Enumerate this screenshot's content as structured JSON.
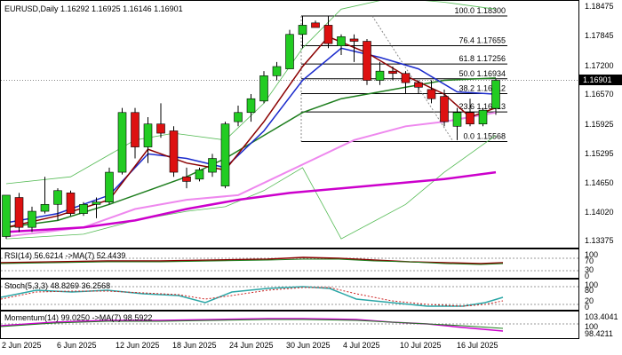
{
  "chart": {
    "symbol_line": "EURUSD,Daily  1.16292 1.16925 1.16146 1.16901",
    "current_price": "1.16901"
  },
  "price_axis": [
    "1.18475",
    "1.17845",
    "1.17200",
    "1.16570",
    "1.15925",
    "1.15295",
    "1.14650",
    "1.14020",
    "1.13375"
  ],
  "fib_levels": [
    {
      "label": "100.0 1.18300"
    },
    {
      "label": "76.4 1.17655"
    },
    {
      "label": "61.8 1.17256"
    },
    {
      "label": "50.0 1.16934"
    },
    {
      "label": "38.2 1.16612"
    },
    {
      "label": "23.6 1.16213"
    },
    {
      "label": "0.0 1.15568"
    }
  ],
  "rsi": {
    "label": "RSI(14) 56.6214  ->MA(7) 52.4439",
    "ticks": [
      "100",
      "70",
      "30",
      "0"
    ]
  },
  "stoch": {
    "label": "Stoch(5,3,3) 48.8269 36.2568",
    "ticks": [
      "100",
      "80",
      "20",
      "0"
    ]
  },
  "momentum": {
    "label": "Momentum(14) 99.0250  ->MA(7) 98.5922",
    "ticks": [
      "103.4041",
      "100",
      "98.4211"
    ]
  },
  "dates": [
    "2 Jun 2025",
    "6 Jun 2025",
    "12 Jun 2025",
    "18 Jun 2025",
    "24 Jun 2025",
    "30 Jun 2025",
    "4 Jul 2025",
    "10 Jul 2025",
    "16 Jul 2025"
  ],
  "colors": {
    "bull": "#22cc22",
    "bear": "#dd1111",
    "ma_blue": "#1a2acc",
    "ma_dark": "#8b0000",
    "ma_green": "#1e7e1e",
    "ma_pink": "#ee88ee",
    "ma_magenta": "#cc00cc",
    "band": "#55bb55"
  },
  "chart_data": {
    "type": "candlestick",
    "candles": [
      {
        "o": 1.135,
        "h": 1.144,
        "l": 1.1345,
        "c": 1.144
      },
      {
        "o": 1.1435,
        "h": 1.1445,
        "l": 1.136,
        "c": 1.137
      },
      {
        "o": 1.137,
        "h": 1.1415,
        "l": 1.136,
        "c": 1.1405
      },
      {
        "o": 1.1405,
        "h": 1.148,
        "l": 1.14,
        "c": 1.142
      },
      {
        "o": 1.142,
        "h": 1.1455,
        "l": 1.1385,
        "c": 1.145
      },
      {
        "o": 1.1445,
        "h": 1.145,
        "l": 1.1395,
        "c": 1.14
      },
      {
        "o": 1.14,
        "h": 1.1425,
        "l": 1.1395,
        "c": 1.142
      },
      {
        "o": 1.142,
        "h": 1.1435,
        "l": 1.139,
        "c": 1.1425
      },
      {
        "o": 1.1425,
        "h": 1.15,
        "l": 1.142,
        "c": 1.149
      },
      {
        "o": 1.149,
        "h": 1.163,
        "l": 1.1485,
        "c": 1.162
      },
      {
        "o": 1.162,
        "h": 1.163,
        "l": 1.152,
        "c": 1.1545
      },
      {
        "o": 1.1545,
        "h": 1.161,
        "l": 1.151,
        "c": 1.1595
      },
      {
        "o": 1.1595,
        "h": 1.164,
        "l": 1.1565,
        "c": 1.1575
      },
      {
        "o": 1.158,
        "h": 1.159,
        "l": 1.148,
        "c": 1.149
      },
      {
        "o": 1.148,
        "h": 1.15,
        "l": 1.1455,
        "c": 1.147
      },
      {
        "o": 1.1475,
        "h": 1.15,
        "l": 1.147,
        "c": 1.1495
      },
      {
        "o": 1.149,
        "h": 1.153,
        "l": 1.148,
        "c": 1.152
      },
      {
        "o": 1.146,
        "h": 1.16,
        "l": 1.1455,
        "c": 1.1595
      },
      {
        "o": 1.16,
        "h": 1.1635,
        "l": 1.159,
        "c": 1.162
      },
      {
        "o": 1.162,
        "h": 1.166,
        "l": 1.16,
        "c": 1.165
      },
      {
        "o": 1.1645,
        "h": 1.171,
        "l": 1.164,
        "c": 1.17
      },
      {
        "o": 1.17,
        "h": 1.173,
        "l": 1.169,
        "c": 1.172
      },
      {
        "o": 1.1715,
        "h": 1.18,
        "l": 1.1715,
        "c": 1.179
      },
      {
        "o": 1.179,
        "h": 1.183,
        "l": 1.176,
        "c": 1.181
      },
      {
        "o": 1.1815,
        "h": 1.182,
        "l": 1.1805,
        "c": 1.1805
      },
      {
        "o": 1.181,
        "h": 1.183,
        "l": 1.176,
        "c": 1.177
      },
      {
        "o": 1.1765,
        "h": 1.179,
        "l": 1.1745,
        "c": 1.1785
      },
      {
        "o": 1.178,
        "h": 1.179,
        "l": 1.173,
        "c": 1.1775
      },
      {
        "o": 1.1775,
        "h": 1.178,
        "l": 1.168,
        "c": 1.169
      },
      {
        "o": 1.169,
        "h": 1.173,
        "l": 1.168,
        "c": 1.171
      },
      {
        "o": 1.171,
        "h": 1.172,
        "l": 1.169,
        "c": 1.1705
      },
      {
        "o": 1.1705,
        "h": 1.171,
        "l": 1.166,
        "c": 1.1685
      },
      {
        "o": 1.1685,
        "h": 1.169,
        "l": 1.166,
        "c": 1.1675
      },
      {
        "o": 1.167,
        "h": 1.169,
        "l": 1.164,
        "c": 1.165
      },
      {
        "o": 1.1655,
        "h": 1.167,
        "l": 1.159,
        "c": 1.16
      },
      {
        "o": 1.159,
        "h": 1.163,
        "l": 1.156,
        "c": 1.162
      },
      {
        "o": 1.162,
        "h": 1.165,
        "l": 1.159,
        "c": 1.1595
      },
      {
        "o": 1.1595,
        "h": 1.163,
        "l": 1.159,
        "c": 1.1625
      },
      {
        "o": 1.1629,
        "h": 1.1693,
        "l": 1.1615,
        "c": 1.169
      }
    ]
  }
}
